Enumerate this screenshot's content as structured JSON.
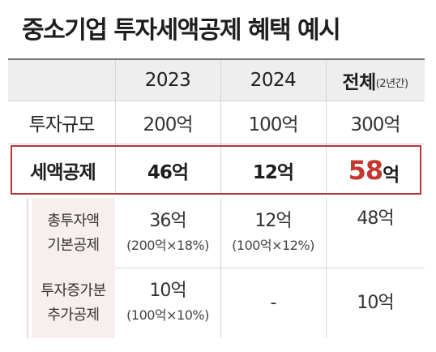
{
  "title": "중소기업 투자세액공제 혜택 예시",
  "table": {
    "header": {
      "col1": "2023",
      "col2": "2024",
      "col3": "전체",
      "col3_suffix": "(2년간)"
    },
    "investment": {
      "label": "투자규모",
      "v2023": "200억",
      "v2024": "100억",
      "total": "300억"
    },
    "tax_credit": {
      "label": "세액공제",
      "v2023": "46억",
      "v2024": "12억",
      "total_number": "58",
      "total_unit": "억"
    },
    "basic": {
      "label_line1": "총투자액",
      "label_line2": "기본공제",
      "v2023": "36억",
      "v2023_detail": "(200억×18%)",
      "v2024": "12억",
      "v2024_detail": "(100억×12%)",
      "total": "48억"
    },
    "additional": {
      "label_line1": "투자증가분",
      "label_line2": "추가공제",
      "v2023": "10억",
      "v2023_detail": "(100억×10%)",
      "v2024": "-",
      "total": "10억"
    }
  },
  "colors": {
    "accent_red": "#c7372f",
    "highlight_border": "#b8353a",
    "header_bg": "#eeeeee",
    "sub_bg": "#f7efee"
  }
}
